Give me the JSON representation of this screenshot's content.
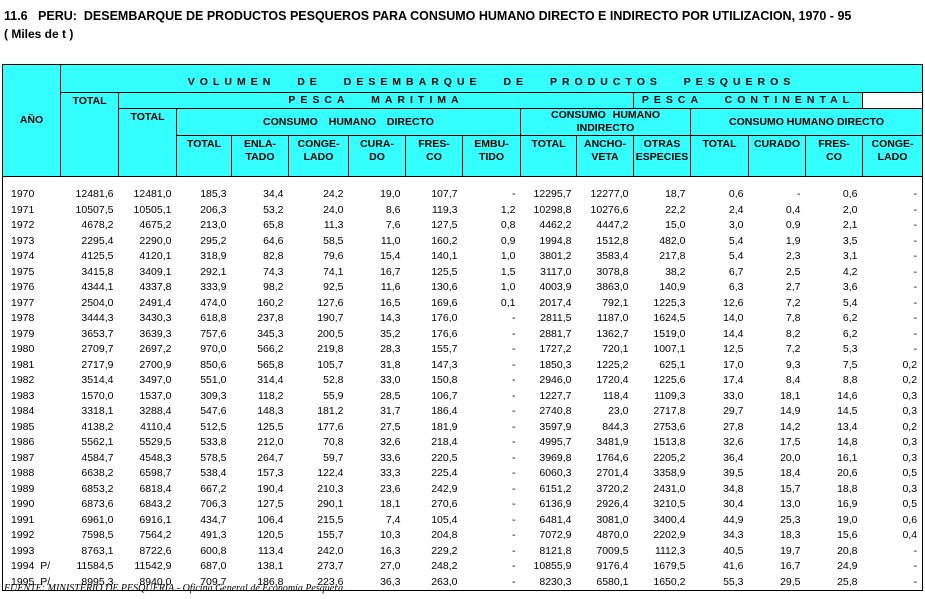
{
  "title": "11.6   PERU:  DESEMBARQUE DE PRODUCTOS PESQUEROS PARA CONSUMO HUMANO DIRECTO E INDIRECTO POR UTILIZACION, 1970 - 95",
  "subtitle": "( Miles de t )",
  "header": {
    "year": "AÑO",
    "volumen": "VOLUMEN DE DESEMBARQUE DE PRODUCTOS PESQUEROS",
    "total": "TOTAL",
    "maritima": "PESCA MARITIMA",
    "continental": "PESCA CONTINENTAL",
    "maritima_total": "TOTAL",
    "chd_maritima": "CONSUMO HUMANO DIRECTO",
    "chi_maritima": "CONSUMO HUMANO INDIRECTO",
    "chd_continental": "CONSUMO HUMANO DIRECTO",
    "columns": [
      [
        "TOTAL"
      ],
      [
        "ENLA-",
        "TADO"
      ],
      [
        "CONGE-",
        "LADO"
      ],
      [
        "CURA-",
        "DO"
      ],
      [
        "FRES-",
        "CO"
      ],
      [
        "EMBU-",
        "TIDO"
      ],
      [
        "TOTAL"
      ],
      [
        "ANCHO-",
        "VETA"
      ],
      [
        "OTRAS",
        "ESPECIES"
      ],
      [
        "TOTAL"
      ],
      [
        "CURADO"
      ],
      [
        "FRES-",
        "CO"
      ],
      [
        "CONGE-",
        "LADO"
      ]
    ]
  },
  "table": {
    "rows": [
      [
        "1970",
        "12481,6",
        "12481,0",
        "185,3",
        "34,4",
        "24,2",
        "19,0",
        "107,7",
        "-",
        "12295,7",
        "12277,0",
        "18,7",
        "0,6",
        "-",
        "0,6",
        "-"
      ],
      [
        "1971",
        "10507,5",
        "10505,1",
        "206,3",
        "53,2",
        "24,0",
        "8,6",
        "119,3",
        "1,2",
        "10298,8",
        "10276,6",
        "22,2",
        "2,4",
        "0,4",
        "2,0",
        "-"
      ],
      [
        "1972",
        "4678,2",
        "4675,2",
        "213,0",
        "65,8",
        "11,3",
        "7,6",
        "127,5",
        "0,8",
        "4462,2",
        "4447,2",
        "15,0",
        "3,0",
        "0,9",
        "2,1",
        "-"
      ],
      [
        "1973",
        "2295,4",
        "2290,0",
        "295,2",
        "64,6",
        "58,5",
        "11,0",
        "160,2",
        "0,9",
        "1994,8",
        "1512,8",
        "482,0",
        "5,4",
        "1,9",
        "3,5",
        "-"
      ],
      [
        "1974",
        "4125,5",
        "4120,1",
        "318,9",
        "82,8",
        "79,6",
        "15,4",
        "140,1",
        "1,0",
        "3801,2",
        "3583,4",
        "217,8",
        "5,4",
        "2,3",
        "3,1",
        "-"
      ],
      [
        "1975",
        "3415,8",
        "3409,1",
        "292,1",
        "74,3",
        "74,1",
        "16,7",
        "125,5",
        "1,5",
        "3117,0",
        "3078,8",
        "38,2",
        "6,7",
        "2,5",
        "4,2",
        "-"
      ],
      [
        "1976",
        "4344,1",
        "4337,8",
        "333,9",
        "98,2",
        "92,5",
        "11,6",
        "130,6",
        "1,0",
        "4003,9",
        "3863,0",
        "140,9",
        "6,3",
        "2,7",
        "3,6",
        "-"
      ],
      [
        "1977",
        "2504,0",
        "2491,4",
        "474,0",
        "160,2",
        "127,6",
        "16,5",
        "169,6",
        "0,1",
        "2017,4",
        "792,1",
        "1225,3",
        "12,6",
        "7,2",
        "5,4",
        "-"
      ],
      [
        "1978",
        "3444,3",
        "3430,3",
        "618,8",
        "237,8",
        "190,7",
        "14,3",
        "176,0",
        "-",
        "2811,5",
        "1187,0",
        "1624,5",
        "14,0",
        "7,8",
        "6,2",
        "-"
      ],
      [
        "1979",
        "3653,7",
        "3639,3",
        "757,6",
        "345,3",
        "200,5",
        "35,2",
        "176,6",
        "-",
        "2881,7",
        "1362,7",
        "1519,0",
        "14,4",
        "8,2",
        "6,2",
        "-"
      ],
      [
        "1980",
        "2709,7",
        "2697,2",
        "970,0",
        "566,2",
        "219,8",
        "28,3",
        "155,7",
        "-",
        "1727,2",
        "720,1",
        "1007,1",
        "12,5",
        "7,2",
        "5,3",
        "-"
      ],
      [
        "1981",
        "2717,9",
        "2700,9",
        "850,6",
        "565,8",
        "105,7",
        "31,8",
        "147,3",
        "-",
        "1850,3",
        "1225,2",
        "625,1",
        "17,0",
        "9,3",
        "7,5",
        "0,2"
      ],
      [
        "1982",
        "3514,4",
        "3497,0",
        "551,0",
        "314,4",
        "52,8",
        "33,0",
        "150,8",
        "-",
        "2946,0",
        "1720,4",
        "1225,6",
        "17,4",
        "8,4",
        "8,8",
        "0,2"
      ],
      [
        "1983",
        "1570,0",
        "1537,0",
        "309,3",
        "118,2",
        "55,9",
        "28,5",
        "106,7",
        "-",
        "1227,7",
        "118,4",
        "1109,3",
        "33,0",
        "18,1",
        "14,6",
        "0,3"
      ],
      [
        "1984",
        "3318,1",
        "3288,4",
        "547,6",
        "148,3",
        "181,2",
        "31,7",
        "186,4",
        "-",
        "2740,8",
        "23,0",
        "2717,8",
        "29,7",
        "14,9",
        "14,5",
        "0,3"
      ],
      [
        "1985",
        "4138,2",
        "4110,4",
        "512,5",
        "125,5",
        "177,6",
        "27,5",
        "181,9",
        "-",
        "3597,9",
        "844,3",
        "2753,6",
        "27,8",
        "14,2",
        "13,4",
        "0,2"
      ],
      [
        "1986",
        "5562,1",
        "5529,5",
        "533,8",
        "212,0",
        "70,8",
        "32,6",
        "218,4",
        "-",
        "4995,7",
        "3481,9",
        "1513,8",
        "32,6",
        "17,5",
        "14,8",
        "0,3"
      ],
      [
        "1987",
        "4584,7",
        "4548,3",
        "578,5",
        "264,7",
        "59,7",
        "33,6",
        "220,5",
        "-",
        "3969,8",
        "1764,6",
        "2205,2",
        "36,4",
        "20,0",
        "16,1",
        "0,3"
      ],
      [
        "1988",
        "6638,2",
        "6598,7",
        "538,4",
        "157,3",
        "122,4",
        "33,3",
        "225,4",
        "-",
        "6060,3",
        "2701,4",
        "3358,9",
        "39,5",
        "18,4",
        "20,6",
        "0,5"
      ],
      [
        "1989",
        "6853,2",
        "6818,4",
        "667,2",
        "190,4",
        "210,3",
        "23,6",
        "242,9",
        "-",
        "6151,2",
        "3720,2",
        "2431,0",
        "34,8",
        "15,7",
        "18,8",
        "0,3"
      ],
      [
        "1990",
        "6873,6",
        "6843,2",
        "706,3",
        "127,5",
        "290,1",
        "18,1",
        "270,6",
        "-",
        "6136,9",
        "2926,4",
        "3210,5",
        "30,4",
        "13,0",
        "16,9",
        "0,5"
      ],
      [
        "1991",
        "6961,0",
        "6916,1",
        "434,7",
        "106,4",
        "215,5",
        "7,4",
        "105,4",
        "-",
        "6481,4",
        "3081,0",
        "3400,4",
        "44,9",
        "25,3",
        "19,0",
        "0,6"
      ],
      [
        "1992",
        "7598,5",
        "7564,2",
        "491,3",
        "120,5",
        "155,7",
        "10,3",
        "204,8",
        "-",
        "7072,9",
        "4870,0",
        "2202,9",
        "34,3",
        "18,3",
        "15,6",
        "0,4"
      ],
      [
        "1993",
        "8763,1",
        "8722,6",
        "600,8",
        "113,4",
        "242,0",
        "16,3",
        "229,2",
        "-",
        "8121,8",
        "7009,5",
        "1112,3",
        "40,5",
        "19,7",
        "20,8",
        "-"
      ],
      [
        "1994  P/",
        "11584,5",
        "11542,9",
        "687,0",
        "138,1",
        "273,7",
        "27,0",
        "248,2",
        "-",
        "10855,9",
        "9176,4",
        "1679,5",
        "41,6",
        "16,7",
        "24,9",
        "-"
      ],
      [
        "1995  P/",
        "8995,3",
        "8940,0",
        "709,7",
        "186,8",
        "223,6",
        "36,3",
        "263,0",
        "-",
        "8230,3",
        "6580,1",
        "1650,2",
        "55,3",
        "29,5",
        "25,8",
        "-"
      ]
    ]
  },
  "footer": "FUENTE: MINISTERIO DE PESQUERIA.- Oficina General de Economía Pesquera."
}
